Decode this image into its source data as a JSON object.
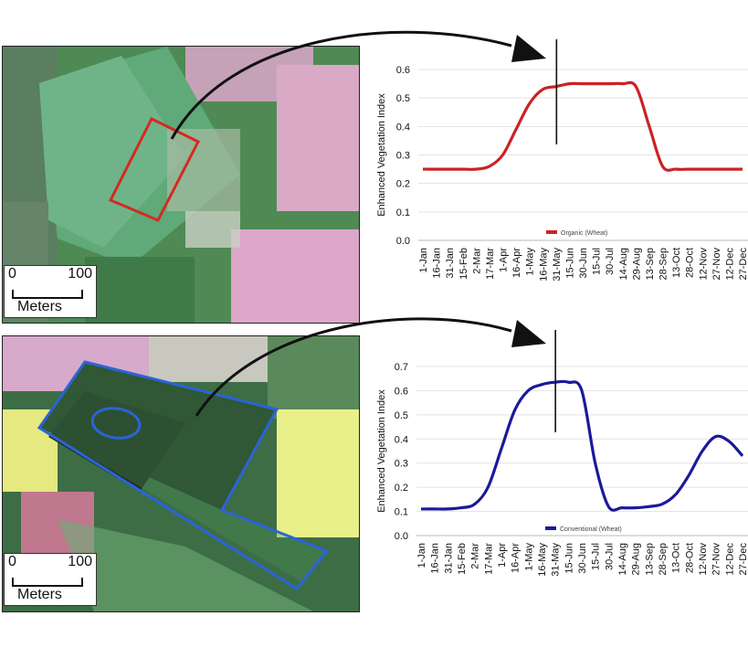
{
  "maps": [
    {
      "scale": {
        "start_label": "0",
        "end_label": "100",
        "unit": "Meters"
      }
    },
    {
      "scale": {
        "start_label": "0",
        "end_label": "100",
        "unit": "Meters"
      }
    }
  ],
  "colors": {
    "organic": "#cc2222",
    "conventional": "#1a1a9a",
    "field_top": "#d42a20",
    "field_bottom": "#2a64d8"
  },
  "chart_data": [
    {
      "type": "line",
      "ylabel": "Enhanced Vegetation Index",
      "ylim": [
        0,
        0.6
      ],
      "yticks": [
        "0.0",
        "0.1",
        "0.2",
        "0.3",
        "0.4",
        "0.5",
        "0.6"
      ],
      "categories": [
        "1-Jan",
        "16-Jan",
        "31-Jan",
        "15-Feb",
        "2-Mar",
        "17-Mar",
        "1-Apr",
        "16-Apr",
        "1-May",
        "16-May",
        "31-May",
        "15-Jun",
        "30-Jun",
        "15-Jul",
        "30-Jul",
        "14-Aug",
        "29-Aug",
        "13-Sep",
        "28-Sep",
        "13-Oct",
        "28-Oct",
        "12-Nov",
        "27-Nov",
        "12-Dec",
        "27-Dec"
      ],
      "marker_date": "31-May",
      "legend": "bottom-center",
      "grid": true,
      "series": [
        {
          "name": "Organic (Wheat)",
          "color": "#cc2222",
          "values": [
            0.25,
            0.25,
            0.25,
            0.25,
            0.25,
            0.26,
            0.3,
            0.39,
            0.48,
            0.53,
            0.54,
            0.55,
            0.55,
            0.55,
            0.55,
            0.55,
            0.54,
            0.4,
            0.26,
            0.25,
            0.25,
            0.25,
            0.25,
            0.25,
            0.25
          ]
        }
      ]
    },
    {
      "type": "line",
      "ylabel": "Enhanced Vegetation Index",
      "ylim": [
        0,
        0.7
      ],
      "yticks": [
        "0.0",
        "0.1",
        "0.2",
        "0.3",
        "0.4",
        "0.5",
        "0.6",
        "0.7"
      ],
      "categories": [
        "1-Jan",
        "16-Jan",
        "31-Jan",
        "15-Feb",
        "2-Mar",
        "17-Mar",
        "1-Apr",
        "16-Apr",
        "1-May",
        "16-May",
        "31-May",
        "15-Jun",
        "30-Jun",
        "15-Jul",
        "30-Jul",
        "14-Aug",
        "29-Aug",
        "13-Sep",
        "28-Sep",
        "13-Oct",
        "28-Oct",
        "12-Nov",
        "27-Nov",
        "12-Dec",
        "27-Dec"
      ],
      "marker_date": "31-May",
      "legend": "bottom-center",
      "grid": true,
      "series": [
        {
          "name": "Conventional (Wheat)",
          "color": "#1a1a9a",
          "values": [
            0.11,
            0.11,
            0.11,
            0.115,
            0.13,
            0.2,
            0.36,
            0.52,
            0.6,
            0.625,
            0.635,
            0.635,
            0.6,
            0.3,
            0.12,
            0.115,
            0.115,
            0.12,
            0.13,
            0.17,
            0.25,
            0.35,
            0.41,
            0.39,
            0.33
          ]
        }
      ]
    }
  ]
}
